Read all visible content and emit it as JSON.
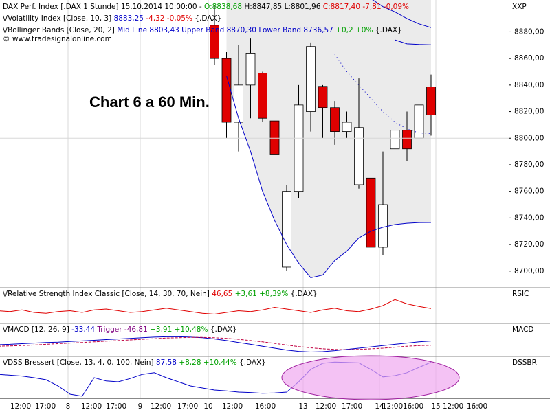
{
  "chart_data": [
    {
      "type": "candlestick",
      "header": [
        [
          {
            "text": "DAX Perf. Index [.DAX  1 Stunde] 15.10.2014 10:00:00 - ",
            "color": "#000000"
          },
          {
            "text": "O:8838,68",
            "color": "#00a000"
          },
          {
            "text": " H:8847,85 L:8801,96 ",
            "color": "#000000"
          },
          {
            "text": "C:8817,40 -7,81 -0,09%",
            "color": "#e00000"
          }
        ],
        [
          {
            "text": "\\/Volatility Index [Close, 10, 3] ",
            "color": "#000000"
          },
          {
            "text": "8883,25 ",
            "color": "#0000c8"
          },
          {
            "text": "-4,32 -0,05% ",
            "color": "#e00000"
          },
          {
            "text": "{.DAX}",
            "color": "#000000"
          }
        ],
        [
          {
            "text": "\\/Bollinger Bands [Close, 20, 2] ",
            "color": "#000000"
          },
          {
            "text": "Mid Line 8803,43 Upper Band 8870,30 Lower Band 8736,57 ",
            "color": "#0000c8"
          },
          {
            "text": "+0,2 +0% ",
            "color": "#00a000"
          },
          {
            "text": "{.DAX}",
            "color": "#000000"
          }
        ],
        [
          {
            "text": "© www.tradesignalonline.com",
            "color": "#000000"
          }
        ]
      ],
      "annotation": "Chart 6 a 60 Min.",
      "axis_name": "XXP",
      "x_labels": [
        "12:00",
        "17:00",
        "8",
        "12:00",
        "17:00",
        "9",
        "12:00",
        "17:00",
        "10",
        "12:00",
        "16:00",
        "13",
        "12:00",
        "17:00",
        "14",
        "12:00",
        "16:00",
        "15",
        "12:00",
        "16:00"
      ],
      "ylim": [
        8688,
        8904
      ],
      "yticks": [
        {
          "value": 8700,
          "label": "8700,00"
        },
        {
          "value": 8720,
          "label": "8720,00"
        },
        {
          "value": 8740,
          "label": "8740,00"
        },
        {
          "value": 8760,
          "label": "8760,00"
        },
        {
          "value": 8780,
          "label": "8780,00"
        },
        {
          "value": 8800,
          "label": "8800,00"
        },
        {
          "value": 8820,
          "label": "8820,00"
        },
        {
          "value": 8840,
          "label": "8840,00"
        },
        {
          "value": 8860,
          "label": "8860,00"
        },
        {
          "value": 8880,
          "label": "8880,00"
        }
      ],
      "up_color": "#ffffff",
      "down_color": "#e00000",
      "open": [
        null,
        null,
        null,
        null,
        null,
        null,
        null,
        null,
        null,
        null,
        null,
        null,
        null,
        null,
        null,
        null,
        null,
        null,
        null,
        8885,
        8860,
        8812,
        8840,
        8849,
        8813,
        8703,
        8760,
        8820,
        8839,
        8823,
        8805,
        8765,
        8770,
        8718,
        8792,
        8806,
        8800,
        8838.68
      ],
      "high": [
        null,
        null,
        null,
        null,
        null,
        null,
        null,
        null,
        null,
        null,
        null,
        null,
        null,
        null,
        null,
        null,
        null,
        null,
        null,
        8900,
        8865,
        8870,
        8875,
        8850,
        8813,
        8765,
        8840,
        8872,
        8840,
        8828,
        8820,
        8845,
        8775,
        8790,
        8820,
        8820,
        8855,
        8847.85
      ],
      "low": [
        null,
        null,
        null,
        null,
        null,
        null,
        null,
        null,
        null,
        null,
        null,
        null,
        null,
        null,
        null,
        null,
        null,
        null,
        null,
        8855,
        8800,
        8790,
        8815,
        8812,
        8788,
        8700,
        8755,
        8805,
        8800,
        8795,
        8800,
        8762,
        8700,
        8712,
        8788,
        8783,
        8790,
        8801.96
      ],
      "close": [
        null,
        null,
        null,
        null,
        null,
        null,
        null,
        null,
        null,
        null,
        null,
        null,
        null,
        null,
        null,
        null,
        null,
        null,
        null,
        8860,
        8812,
        8840,
        8864,
        8815,
        8788,
        8760,
        8825,
        8869,
        8823,
        8805,
        8812,
        8808,
        8718,
        8750,
        8806,
        8792,
        8825,
        8817.4
      ],
      "series": [
        {
          "name": "Volatility Index",
          "color": "#0000c8",
          "dash": false,
          "values": [
            null,
            null,
            null,
            null,
            null,
            null,
            null,
            null,
            null,
            null,
            null,
            null,
            null,
            null,
            null,
            null,
            null,
            null,
            null,
            null,
            null,
            null,
            null,
            null,
            null,
            null,
            null,
            null,
            null,
            null,
            null,
            null,
            8905,
            8899,
            8895,
            8890,
            8886,
            8883.25
          ]
        },
        {
          "name": "Upper Band",
          "color": "#0000c8",
          "dash": false,
          "values": [
            null,
            null,
            null,
            null,
            null,
            null,
            null,
            null,
            null,
            null,
            null,
            null,
            null,
            null,
            null,
            null,
            null,
            null,
            null,
            null,
            null,
            null,
            null,
            null,
            null,
            null,
            null,
            null,
            null,
            null,
            null,
            null,
            null,
            null,
            8874,
            8871,
            8870.5,
            8870.3
          ]
        },
        {
          "name": "Mid Line",
          "color": "#0000c8",
          "dash": true,
          "values": [
            null,
            null,
            null,
            null,
            null,
            null,
            null,
            null,
            null,
            null,
            null,
            null,
            null,
            null,
            null,
            null,
            null,
            null,
            null,
            null,
            null,
            null,
            null,
            null,
            null,
            null,
            null,
            null,
            null,
            8863,
            8850,
            8840,
            8830,
            8820,
            8812,
            8807,
            8804,
            8803.43
          ]
        },
        {
          "name": "Lower Band",
          "color": "#0000c8",
          "dash": false,
          "values": [
            null,
            null,
            null,
            null,
            null,
            null,
            null,
            null,
            null,
            null,
            null,
            null,
            null,
            null,
            null,
            null,
            null,
            null,
            null,
            null,
            8847,
            8815,
            8790,
            8760,
            8738,
            8720,
            8706,
            8695,
            8697,
            8708,
            8715,
            8725,
            8730,
            8733,
            8735,
            8736,
            8736.5,
            8736.57
          ]
        }
      ]
    },
    {
      "type": "line",
      "header": [
        [
          {
            "text": "\\/Relative Strength Index Classic [Close, 14, 30, 70, Nein] ",
            "color": "#000000"
          },
          {
            "text": "46,65 ",
            "color": "#e00000"
          },
          {
            "text": "+3,61 +8,39% ",
            "color": "#00a000"
          },
          {
            "text": "{.DAX}",
            "color": "#000000"
          }
        ]
      ],
      "axis_name": "RSIC",
      "ylim": [
        30,
        70
      ],
      "series": [
        {
          "name": "RSI",
          "color": "#e00000",
          "dash": false,
          "values": [
            null,
            44,
            43,
            45,
            42,
            41,
            43,
            44,
            42,
            45,
            46,
            44,
            42,
            43,
            45,
            47,
            45,
            43,
            41,
            40,
            42,
            44,
            43,
            45,
            48,
            46,
            44,
            42,
            45,
            47,
            44,
            43,
            46,
            50,
            57,
            52,
            49,
            46.65
          ]
        }
      ]
    },
    {
      "type": "line",
      "header": [
        [
          {
            "text": "\\/MACD [12, 26, 9] ",
            "color": "#000000"
          },
          {
            "text": "-33,44 ",
            "color": "#0000c8"
          },
          {
            "text": "Trigger -46,81 ",
            "color": "#800080"
          },
          {
            "text": "+3,91 +10,48% ",
            "color": "#00a000"
          },
          {
            "text": "{.DAX}",
            "color": "#000000"
          }
        ]
      ],
      "axis_name": "MACD",
      "ylim": [
        -80,
        20
      ],
      "series": [
        {
          "name": "MACD",
          "color": "#0000c8",
          "dash": false,
          "values": [
            null,
            -45,
            -44,
            -42,
            -40,
            -38,
            -37,
            -35,
            -33,
            -31,
            -29,
            -27,
            -25,
            -23,
            -21,
            -20,
            -20,
            -21,
            -23,
            -27,
            -32,
            -38,
            -44,
            -50,
            -56,
            -62,
            -66,
            -68,
            -67,
            -64,
            -60,
            -56,
            -52,
            -48,
            -44,
            -40,
            -36,
            -33.44
          ]
        },
        {
          "name": "Trigger",
          "color": "#c00040",
          "dash": true,
          "values": [
            null,
            -50,
            -49,
            -48,
            -46,
            -44,
            -42,
            -40,
            -38,
            -36,
            -34,
            -32,
            -30,
            -28,
            -26,
            -24,
            -23,
            -22,
            -22,
            -23,
            -25,
            -28,
            -32,
            -36,
            -41,
            -46,
            -51,
            -55,
            -58,
            -60,
            -61,
            -60,
            -58,
            -56,
            -53,
            -50,
            -48,
            -46.81
          ]
        }
      ]
    },
    {
      "type": "line",
      "header": [
        [
          {
            "text": "\\/DSS Bressert [Close, 13, 4, 0, 100, Nein] ",
            "color": "#000000"
          },
          {
            "text": "87,58 ",
            "color": "#0000c8"
          },
          {
            "text": "+8,28 +10,44% ",
            "color": "#00a000"
          },
          {
            "text": "{.DAX}",
            "color": "#000000"
          }
        ]
      ],
      "axis_name": "DSSBR",
      "ylim": [
        0,
        100
      ],
      "series": [
        {
          "name": "DSS",
          "color": "#0000c8",
          "dash": false,
          "values": [
            null,
            58,
            56,
            54,
            50,
            45,
            30,
            10,
            5,
            50,
            42,
            40,
            48,
            58,
            62,
            50,
            40,
            30,
            25,
            20,
            18,
            15,
            14,
            12,
            13,
            15,
            40,
            70,
            85,
            88,
            87,
            86,
            70,
            52,
            55,
            62,
            75,
            87.58
          ]
        }
      ]
    }
  ]
}
